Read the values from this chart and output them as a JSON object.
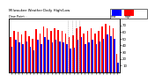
{
  "title": "Milwaukee Weather Dew Point",
  "subtitle": "Daily High/Low",
  "high_color": "#ff0000",
  "low_color": "#0000ff",
  "background_color": "#ffffff",
  "ylim": [
    0,
    80
  ],
  "yticks": [
    10,
    20,
    30,
    40,
    50,
    60,
    70
  ],
  "bar_width": 0.38,
  "high_values": [
    52,
    62,
    60,
    57,
    62,
    54,
    50,
    64,
    58,
    68,
    65,
    62,
    65,
    63,
    61,
    58,
    52,
    55,
    65,
    68,
    58,
    62,
    65,
    58,
    62,
    68,
    72,
    70,
    65,
    28
  ],
  "low_values": [
    38,
    48,
    44,
    42,
    46,
    38,
    33,
    48,
    42,
    52,
    48,
    44,
    48,
    46,
    44,
    42,
    35,
    37,
    48,
    52,
    42,
    44,
    48,
    42,
    46,
    50,
    56,
    54,
    50,
    14
  ],
  "dotted_vlines": [
    15.5,
    16.5,
    17.5,
    18.5
  ],
  "n_groups": 30
}
